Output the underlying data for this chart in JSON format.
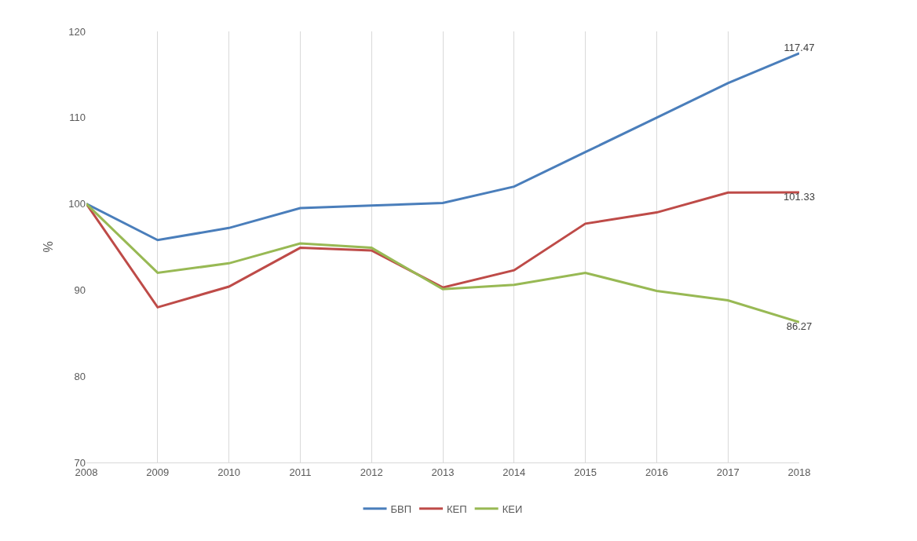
{
  "chart_data": {
    "type": "line",
    "ylabel": "%",
    "x": [
      2008,
      2009,
      2010,
      2011,
      2012,
      2013,
      2014,
      2015,
      2016,
      2017,
      2018
    ],
    "xlim": [
      2008,
      2018
    ],
    "xticks": [
      2008,
      2009,
      2010,
      2011,
      2012,
      2013,
      2014,
      2015,
      2016,
      2017,
      2018
    ],
    "ylim": [
      70,
      120
    ],
    "yticks": [
      70,
      80,
      90,
      100,
      110,
      120
    ],
    "grid": "x",
    "legend": "bottom",
    "marker": "none",
    "line_style": "solid",
    "series": [
      {
        "name": "БВП",
        "color": "#4a7ebb",
        "values": [
          100,
          95.8,
          97.2,
          99.5,
          99.8,
          100.1,
          102.0,
          106.0,
          110.0,
          114.0,
          117.47
        ],
        "value_labels": [
          null,
          null,
          null,
          null,
          null,
          null,
          null,
          null,
          null,
          null,
          "117.47"
        ]
      },
      {
        "name": "КЕП",
        "color": "#be4b48",
        "values": [
          100,
          88.0,
          90.4,
          94.9,
          94.6,
          90.3,
          92.3,
          97.7,
          99.0,
          101.3,
          101.33
        ],
        "value_labels": [
          null,
          null,
          null,
          null,
          null,
          null,
          null,
          null,
          null,
          null,
          "101.33"
        ]
      },
      {
        "name": "КЕИ",
        "color": "#98b954",
        "values": [
          100,
          92.0,
          93.1,
          95.4,
          94.9,
          90.1,
          90.6,
          92.0,
          89.9,
          88.8,
          86.27
        ],
        "value_labels": [
          null,
          null,
          null,
          null,
          null,
          null,
          null,
          null,
          null,
          null,
          "86.27"
        ]
      }
    ]
  }
}
